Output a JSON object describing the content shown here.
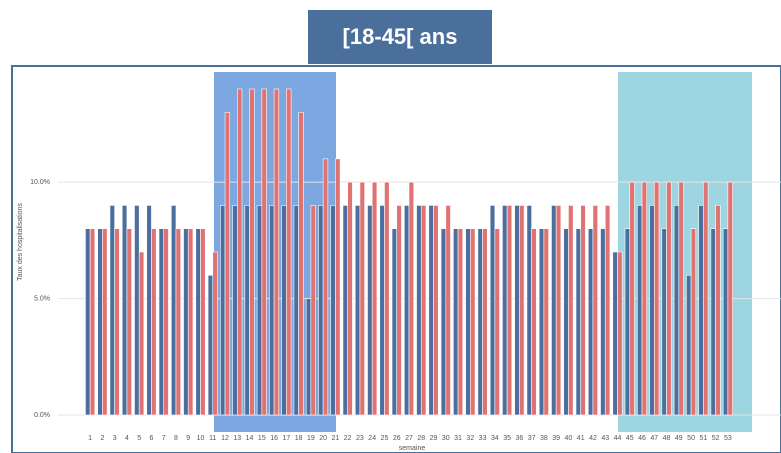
{
  "chart_data": {
    "type": "bar",
    "title": "[18-45[ ans",
    "x_label": "semaine",
    "y_label": "Taux des hospitalisations",
    "categories": [
      "1",
      "2",
      "3",
      "4",
      "5",
      "6",
      "7",
      "8",
      "9",
      "10",
      "11",
      "12",
      "13",
      "14",
      "15",
      "16",
      "17",
      "18",
      "19",
      "20",
      "21",
      "22",
      "23",
      "24",
      "25",
      "26",
      "27",
      "28",
      "29",
      "30",
      "31",
      "32",
      "33",
      "34",
      "35",
      "36",
      "37",
      "38",
      "39",
      "40",
      "41",
      "42",
      "43",
      "44",
      "45",
      "46",
      "47",
      "48",
      "49",
      "50",
      "51",
      "52",
      "53"
    ],
    "series": [
      {
        "name": "blue",
        "color": "#4a6f9f",
        "values": [
          8,
          8,
          9,
          9,
          9,
          9,
          8,
          9,
          8,
          8,
          6,
          9,
          9,
          9,
          9,
          9,
          9,
          9,
          5,
          9,
          9,
          9,
          9,
          9,
          9,
          8,
          9,
          9,
          9,
          8,
          8,
          8,
          8,
          9,
          9,
          9,
          9,
          8,
          9,
          8,
          8,
          8,
          8,
          7,
          8,
          9,
          9,
          8,
          9,
          6,
          9,
          8,
          8
        ]
      },
      {
        "name": "red",
        "color": "#e07272",
        "values": [
          8,
          8,
          8,
          8,
          7,
          8,
          8,
          8,
          8,
          8,
          7,
          13,
          14,
          14,
          14,
          14,
          14,
          13,
          9,
          11,
          11,
          10,
          10,
          10,
          10,
          9,
          10,
          9,
          9,
          9,
          8,
          8,
          8,
          8,
          9,
          9,
          8,
          8,
          9,
          9,
          9,
          9,
          9,
          7,
          10,
          10,
          10,
          10,
          10,
          8,
          10,
          9,
          10
        ]
      }
    ],
    "ylim": [
      0,
      14.3
    ],
    "yticks": [
      {
        "value": 0,
        "label": "0.0%"
      },
      {
        "value": 5,
        "label": "5.0%"
      },
      {
        "value": 10,
        "label": "10.0%"
      }
    ],
    "grid": true
  }
}
